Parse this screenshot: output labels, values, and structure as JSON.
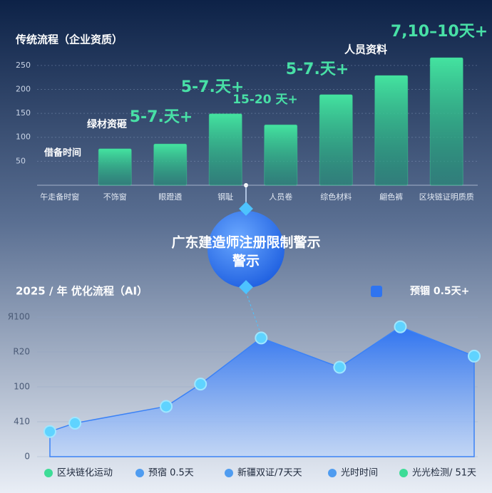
{
  "chart_data": [
    {
      "type": "bar",
      "title": "传统流程（企业资质）",
      "categories": [
        "午走备时窗",
        "不饰窗",
        "眼蹬遴",
        "钢耻",
        "人员卷",
        "综色材料",
        "翩色裤",
        "区块链证明质质"
      ],
      "values": [
        null,
        76,
        86,
        149,
        126,
        189,
        229,
        266
      ],
      "color": "#3ddc97",
      "ylim": [
        0,
        275
      ],
      "yticks": [
        50,
        100,
        150,
        200,
        250
      ],
      "grid": true,
      "annotations": [
        "5-7.天+",
        "5-7.天+",
        "15-20 天+",
        "5-7.天+",
        "7,10–10天+",
        "人员资料",
        "绿材资砸",
        "借备时间"
      ]
    },
    {
      "type": "area",
      "title": "2025 / 年  优化流程（AI）",
      "x": [
        0,
        5.9,
        27.4,
        35.5,
        49.8,
        68.3,
        82.6,
        100
      ],
      "values": [
        18,
        24,
        36,
        52,
        85,
        64,
        93,
        72
      ],
      "color": "#3b82f6",
      "xlim": [
        0,
        100
      ],
      "ylim": [
        0,
        100
      ],
      "yticks": [
        0,
        {
          "value": 25,
          "label": "410"
        },
        {
          "value": 50,
          "label": "100"
        },
        {
          "value": 75,
          "label": "R20"
        },
        {
          "value": 100,
          "label": "Я100"
        }
      ],
      "grid": true,
      "note": "预锢 0.5天+",
      "legend": [
        {
          "name": "区块链化运动",
          "color": "#3ddc97"
        },
        {
          "name": "预宿 0.5天",
          "color": "#4f9cf0"
        },
        {
          "name": "新疆双证/7天天",
          "color": "#4f9cf0"
        },
        {
          "name": "光时时间",
          "color": "#4f9cf0"
        },
        {
          "name": "光光检测/ 51天",
          "color": "#3ddc97"
        }
      ]
    }
  ],
  "banner": {
    "line1": "广东建造师注册限制警示",
    "line2": "警示"
  }
}
